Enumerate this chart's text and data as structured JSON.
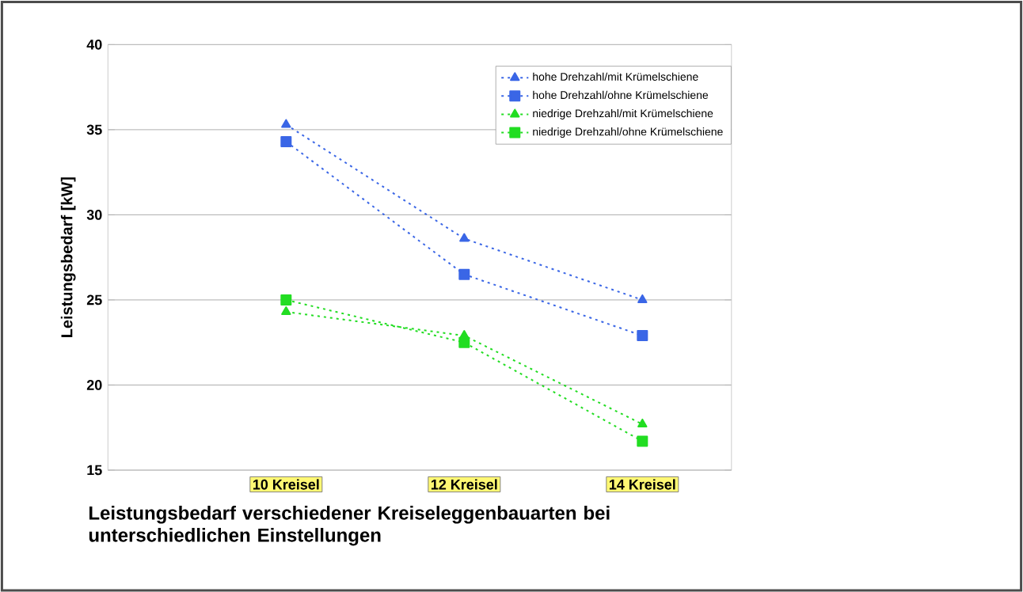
{
  "chart_data": {
    "type": "line",
    "title": "Leistungsbedarf verschiedener Kreiseleggenbauarten bei unterschiedlichen Einstellungen",
    "ylabel": "Leistungsbedarf [kW]",
    "categories": [
      "10 Kreisel",
      "12 Kreisel",
      "14 Kreisel"
    ],
    "series": [
      {
        "name": "hohe Drehzahl/mit Krümelschiene",
        "color": "#3a66e6",
        "marker": "triangle",
        "values": [
          35.3,
          28.6,
          25.0
        ]
      },
      {
        "name": "hohe Drehzahl/ohne Krümelschiene",
        "color": "#3a66e6",
        "marker": "square",
        "values": [
          34.3,
          26.5,
          22.9
        ]
      },
      {
        "name": "niedrige Drehzahl/mit Krümelschiene",
        "color": "#22dd22",
        "marker": "triangle",
        "values": [
          24.3,
          22.9,
          17.7
        ]
      },
      {
        "name": "niedrige Drehzahl/ohne Krümelschiene",
        "color": "#22dd22",
        "marker": "square",
        "values": [
          25.0,
          22.5,
          16.7
        ]
      }
    ],
    "ylim": [
      15,
      40
    ],
    "yticks": [
      15,
      20,
      25,
      30,
      35,
      40
    ],
    "grid": "y",
    "legend": "top right",
    "line_style": "dotted"
  }
}
